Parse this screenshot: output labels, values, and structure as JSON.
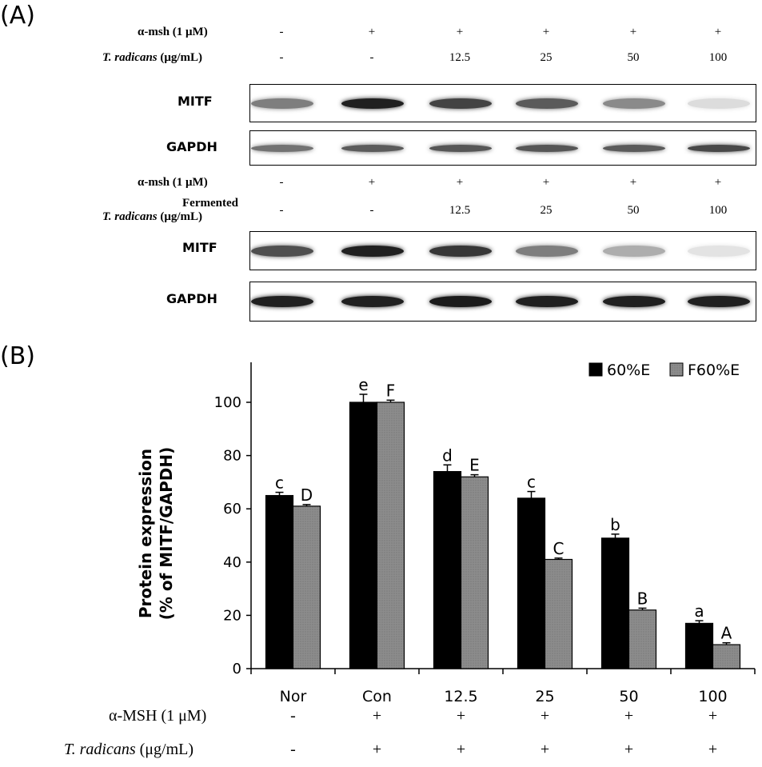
{
  "panel_a": {
    "label": "(A)",
    "blot1": {
      "row1_label": "α-msh (1 μM)",
      "row1_values": [
        "-",
        "+",
        "+",
        "+",
        "+",
        "+"
      ],
      "row2_label_italic": "T. radicans",
      "row2_label_rest": " (μg/mL)",
      "row2_values": [
        "-",
        "-",
        "12.5",
        "25",
        "50",
        "100"
      ],
      "band_labels": [
        "MITF",
        "GAPDH"
      ],
      "mitf_intensity": [
        0.55,
        0.95,
        0.8,
        0.7,
        0.5,
        0.15
      ],
      "gapdh_intensity": [
        0.6,
        0.7,
        0.72,
        0.72,
        0.7,
        0.78
      ]
    },
    "blot2": {
      "row1_label": "α-msh (1 μM)",
      "row1_values": [
        "-",
        "+",
        "+",
        "+",
        "+",
        "+"
      ],
      "row2_label_line1": "Fermented",
      "row2_label_italic": "T. radicans",
      "row2_label_rest": " (μg/mL)",
      "row2_values": [
        "-",
        "-",
        "12.5",
        "25",
        "50",
        "100"
      ],
      "band_labels": [
        "MITF",
        "GAPDH"
      ],
      "mitf_intensity": [
        0.75,
        0.95,
        0.85,
        0.55,
        0.35,
        0.12
      ],
      "gapdh_intensity": [
        0.95,
        0.95,
        0.97,
        0.95,
        0.95,
        0.95
      ]
    }
  },
  "panel_b": {
    "label": "(B)",
    "colors": {
      "series1": "#000000",
      "series2": "#8c8c8c"
    },
    "conditions": {
      "row1_label": "α-MSH (1 μM)",
      "row1_values": [
        "-",
        "+",
        "+",
        "+",
        "+",
        "+"
      ],
      "row2_label_italic": "T. radicans",
      "row2_label_rest": " (μg/mL)",
      "row2_values": [
        "-",
        "+",
        "+",
        "+",
        "+",
        "+"
      ]
    }
  },
  "chart_data": {
    "type": "bar",
    "categories": [
      "Nor",
      "Con",
      "12.5",
      "25",
      "50",
      "100"
    ],
    "series": [
      {
        "name": "60%E",
        "values": [
          65,
          100,
          74,
          64,
          49,
          17
        ],
        "errors": [
          1.2,
          3,
          2.5,
          2.5,
          1.5,
          1
        ],
        "letters": [
          "c",
          "e",
          "d",
          "c",
          "b",
          "a"
        ]
      },
      {
        "name": "F60%E",
        "values": [
          61,
          100,
          72,
          41,
          22,
          9
        ],
        "errors": [
          0.6,
          0.8,
          0.8,
          0.5,
          0.7,
          0.7
        ],
        "letters": [
          "D",
          "F",
          "E",
          "C",
          "B",
          "A"
        ]
      }
    ],
    "ylabel_line1": "Protein expression",
    "ylabel_line2": "(% of MITF/GAPDH)",
    "xlabel": "",
    "ylim": [
      0,
      100
    ],
    "ymax_axis": 115,
    "yticks": [
      0,
      20,
      40,
      60,
      80,
      100
    ],
    "legend_position": "top-right",
    "grid": false
  }
}
